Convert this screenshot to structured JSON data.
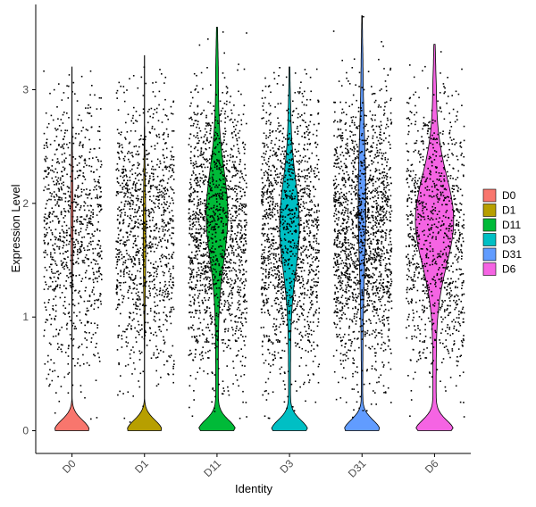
{
  "chart_data": {
    "type": "violin",
    "xlabel": "Identity",
    "ylabel": "Expression Level",
    "ylim": [
      -0.2,
      3.75
    ],
    "yticks": [
      0,
      1,
      2,
      3
    ],
    "categories": [
      "D0",
      "D1",
      "D11",
      "D3",
      "D31",
      "D6"
    ],
    "series": [
      {
        "name": "D0",
        "color": "#F8766D",
        "max": 3.2,
        "zero_peak_width": 0.55,
        "upper_density": "very thin",
        "jitter_points_shown": 900
      },
      {
        "name": "D1",
        "color": "#B79F00",
        "max": 3.3,
        "zero_peak_width": 0.55,
        "upper_density": "very thin",
        "jitter_points_shown": 1100
      },
      {
        "name": "D11",
        "color": "#00BA38",
        "max": 3.55,
        "zero_peak_width": 0.55,
        "upper_density": "moderate, peak ~1.9",
        "jitter_points_shown": 1500
      },
      {
        "name": "D3",
        "color": "#00BFC4",
        "max": 3.2,
        "zero_peak_width": 0.55,
        "upper_density": "moderate, peak ~1.8",
        "jitter_points_shown": 1400
      },
      {
        "name": "D31",
        "color": "#619CFF",
        "max": 3.65,
        "zero_peak_width": 0.55,
        "upper_density": "thin",
        "jitter_points_shown": 1700
      },
      {
        "name": "D6",
        "color": "#F564E3",
        "max": 3.4,
        "zero_peak_width": 0.55,
        "upper_density": "wide, peak ~1.9",
        "jitter_points_shown": 1000
      }
    ],
    "legend": {
      "position": "right",
      "entries": [
        "D0",
        "D1",
        "D11",
        "D3",
        "D31",
        "D6"
      ]
    },
    "grid": false
  }
}
